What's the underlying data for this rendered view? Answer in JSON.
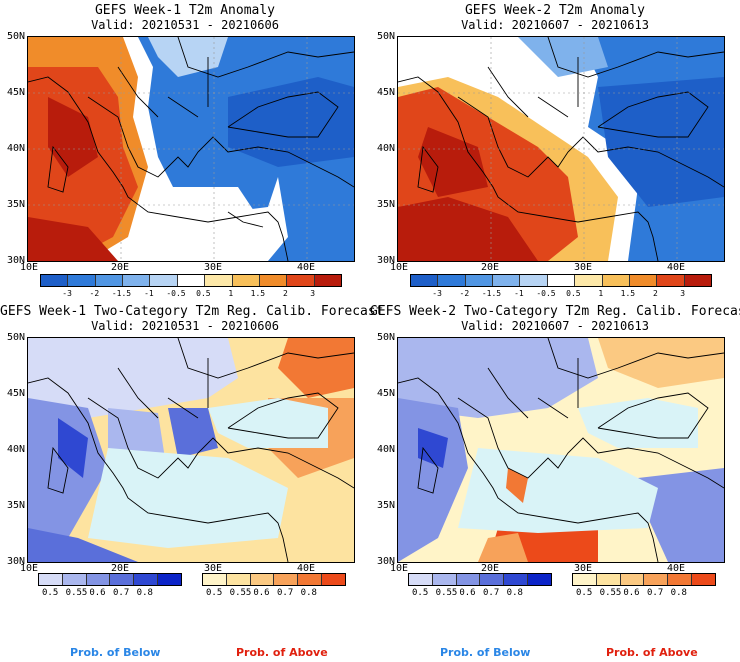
{
  "panels": [
    {
      "id": "p1",
      "title": "GEFS Week-1 T2m Anomaly",
      "valid": "Valid: 20210531 - 20210606"
    },
    {
      "id": "p2",
      "title": "GEFS Week-2 T2m Anomaly",
      "valid": "Valid: 20210607 - 20210613"
    },
    {
      "id": "p3",
      "title": "GEFS Week-1 Two-Category T2m Reg. Calib. Forecast",
      "valid": "Valid: 20210531 - 20210606"
    },
    {
      "id": "p4",
      "title": "GEFS Week-2 Two-Category T2m Reg. Calib. Forecast",
      "valid": "Valid: 20210607 - 20210613"
    }
  ],
  "lat_labels": [
    "50N",
    "45N",
    "40N",
    "35N",
    "30N"
  ],
  "lon_labels": [
    "10E",
    "20E",
    "30E",
    "40E"
  ],
  "anomaly_scale": {
    "ticks": [
      "-3",
      "-2",
      "-1.5",
      "-1",
      "-0.5",
      "0.5",
      "1",
      "1.5",
      "2",
      "3"
    ],
    "colors": [
      "#1e5fc8",
      "#2f7ad9",
      "#5196e3",
      "#7fb2ec",
      "#b7d4f4",
      "#ffffff",
      "#fde8a8",
      "#f8c05a",
      "#f08c2a",
      "#e0461a",
      "#b81c0c"
    ]
  },
  "prob_below": {
    "label": "Prob. of Below",
    "ticks": [
      "0.5",
      "0.55",
      "0.6",
      "0.7",
      "0.8"
    ],
    "colors": [
      "#d6dcf7",
      "#aab7ee",
      "#8394e4",
      "#5a6fda",
      "#2f48d2",
      "#0c24c8"
    ]
  },
  "prob_above": {
    "label": "Prob. of Above",
    "ticks": [
      "0.5",
      "0.55",
      "0.6",
      "0.7",
      "0.8"
    ],
    "colors": [
      "#fff4c8",
      "#fde3a0",
      "#fbc982",
      "#f7a25a",
      "#f27834",
      "#ec4a1a"
    ]
  },
  "colors": {
    "sea": "#d9f3f7",
    "below_label": "#2a86e6",
    "above_label": "#e0200e"
  }
}
